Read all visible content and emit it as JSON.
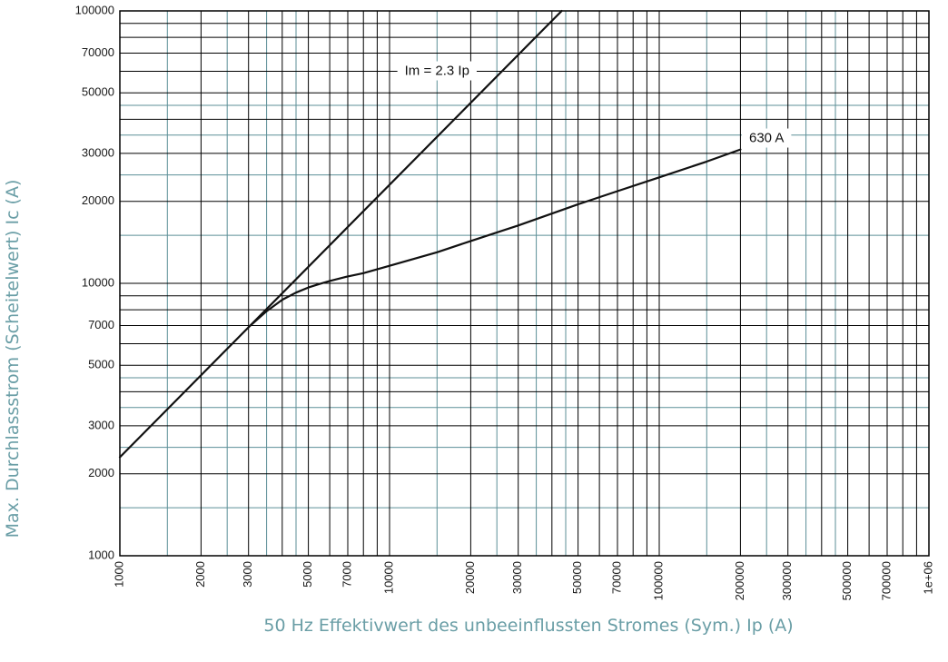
{
  "chart_data": {
    "type": "line",
    "title": "",
    "xlabel": "50 Hz Effektivwert des unbeeinflussten Stromes (Sym.) Ip (A)",
    "ylabel": "Max. Durchlassstrom (Scheitelwert) Ic (A)",
    "xscale": "log",
    "yscale": "log",
    "xlim": [
      1000,
      1000000
    ],
    "ylim": [
      1000,
      100000
    ],
    "grid": true,
    "x_ticks": [
      {
        "value": 1000,
        "label": "1000"
      },
      {
        "value": 2000,
        "label": "2000"
      },
      {
        "value": 3000,
        "label": "3000"
      },
      {
        "value": 5000,
        "label": "5000"
      },
      {
        "value": 7000,
        "label": "7000"
      },
      {
        "value": 10000,
        "label": "10000"
      },
      {
        "value": 20000,
        "label": "20000"
      },
      {
        "value": 30000,
        "label": "30000"
      },
      {
        "value": 50000,
        "label": "50000"
      },
      {
        "value": 70000,
        "label": "70000"
      },
      {
        "value": 100000,
        "label": "100000"
      },
      {
        "value": 200000,
        "label": "200000"
      },
      {
        "value": 300000,
        "label": "300000"
      },
      {
        "value": 500000,
        "label": "500000"
      },
      {
        "value": 700000,
        "label": "700000"
      },
      {
        "value": 1000000,
        "label": "1e+06"
      }
    ],
    "y_ticks": [
      {
        "value": 1000,
        "label": "1000"
      },
      {
        "value": 2000,
        "label": "2000"
      },
      {
        "value": 3000,
        "label": "3000"
      },
      {
        "value": 5000,
        "label": "5000"
      },
      {
        "value": 7000,
        "label": "7000"
      },
      {
        "value": 10000,
        "label": "10000"
      },
      {
        "value": 20000,
        "label": "20000"
      },
      {
        "value": 30000,
        "label": "30000"
      },
      {
        "value": 50000,
        "label": "50000"
      },
      {
        "value": 70000,
        "label": "70000"
      },
      {
        "value": 100000,
        "label": "100000"
      }
    ],
    "grid_black": [
      2000,
      3000,
      4000,
      5000,
      6000,
      7000,
      8000,
      9000,
      10000,
      20000,
      30000,
      40000,
      50000,
      60000,
      70000,
      80000,
      90000,
      100000,
      200000,
      300000,
      400000,
      500000,
      600000,
      700000,
      800000,
      900000
    ],
    "grid_teal": [
      1500,
      2500,
      3500,
      4500,
      15000,
      25000,
      35000,
      45000,
      150000,
      250000,
      350000,
      450000
    ],
    "series": [
      {
        "name": "Im = 2.3 Ip",
        "color": "#111111",
        "points": [
          [
            1000,
            2300
          ],
          [
            43500,
            100000
          ]
        ]
      },
      {
        "name": "630 A",
        "color": "#111111",
        "points": [
          [
            3000,
            6900
          ],
          [
            3500,
            7900
          ],
          [
            4000,
            8700
          ],
          [
            4500,
            9250
          ],
          [
            5000,
            9650
          ],
          [
            5500,
            9950
          ],
          [
            6000,
            10200
          ],
          [
            7000,
            10600
          ],
          [
            8000,
            10900
          ],
          [
            10000,
            11600
          ],
          [
            15000,
            13000
          ],
          [
            20000,
            14300
          ],
          [
            30000,
            16300
          ],
          [
            50000,
            19500
          ],
          [
            70000,
            21800
          ],
          [
            100000,
            24500
          ],
          [
            150000,
            28000
          ],
          [
            200000,
            31000
          ]
        ]
      }
    ],
    "annotations": [
      {
        "text": "Im = 2.3 Ip",
        "x": 15000,
        "y": 60000,
        "color": "#111111"
      },
      {
        "text": "630 A",
        "x": 250000,
        "y": 34000,
        "color": "#111111"
      }
    ],
    "colors": {
      "major_grid": "#000000",
      "minor_grid": "#5c8f97",
      "axis_title": "#6a9ea6",
      "line": "#111111"
    }
  }
}
